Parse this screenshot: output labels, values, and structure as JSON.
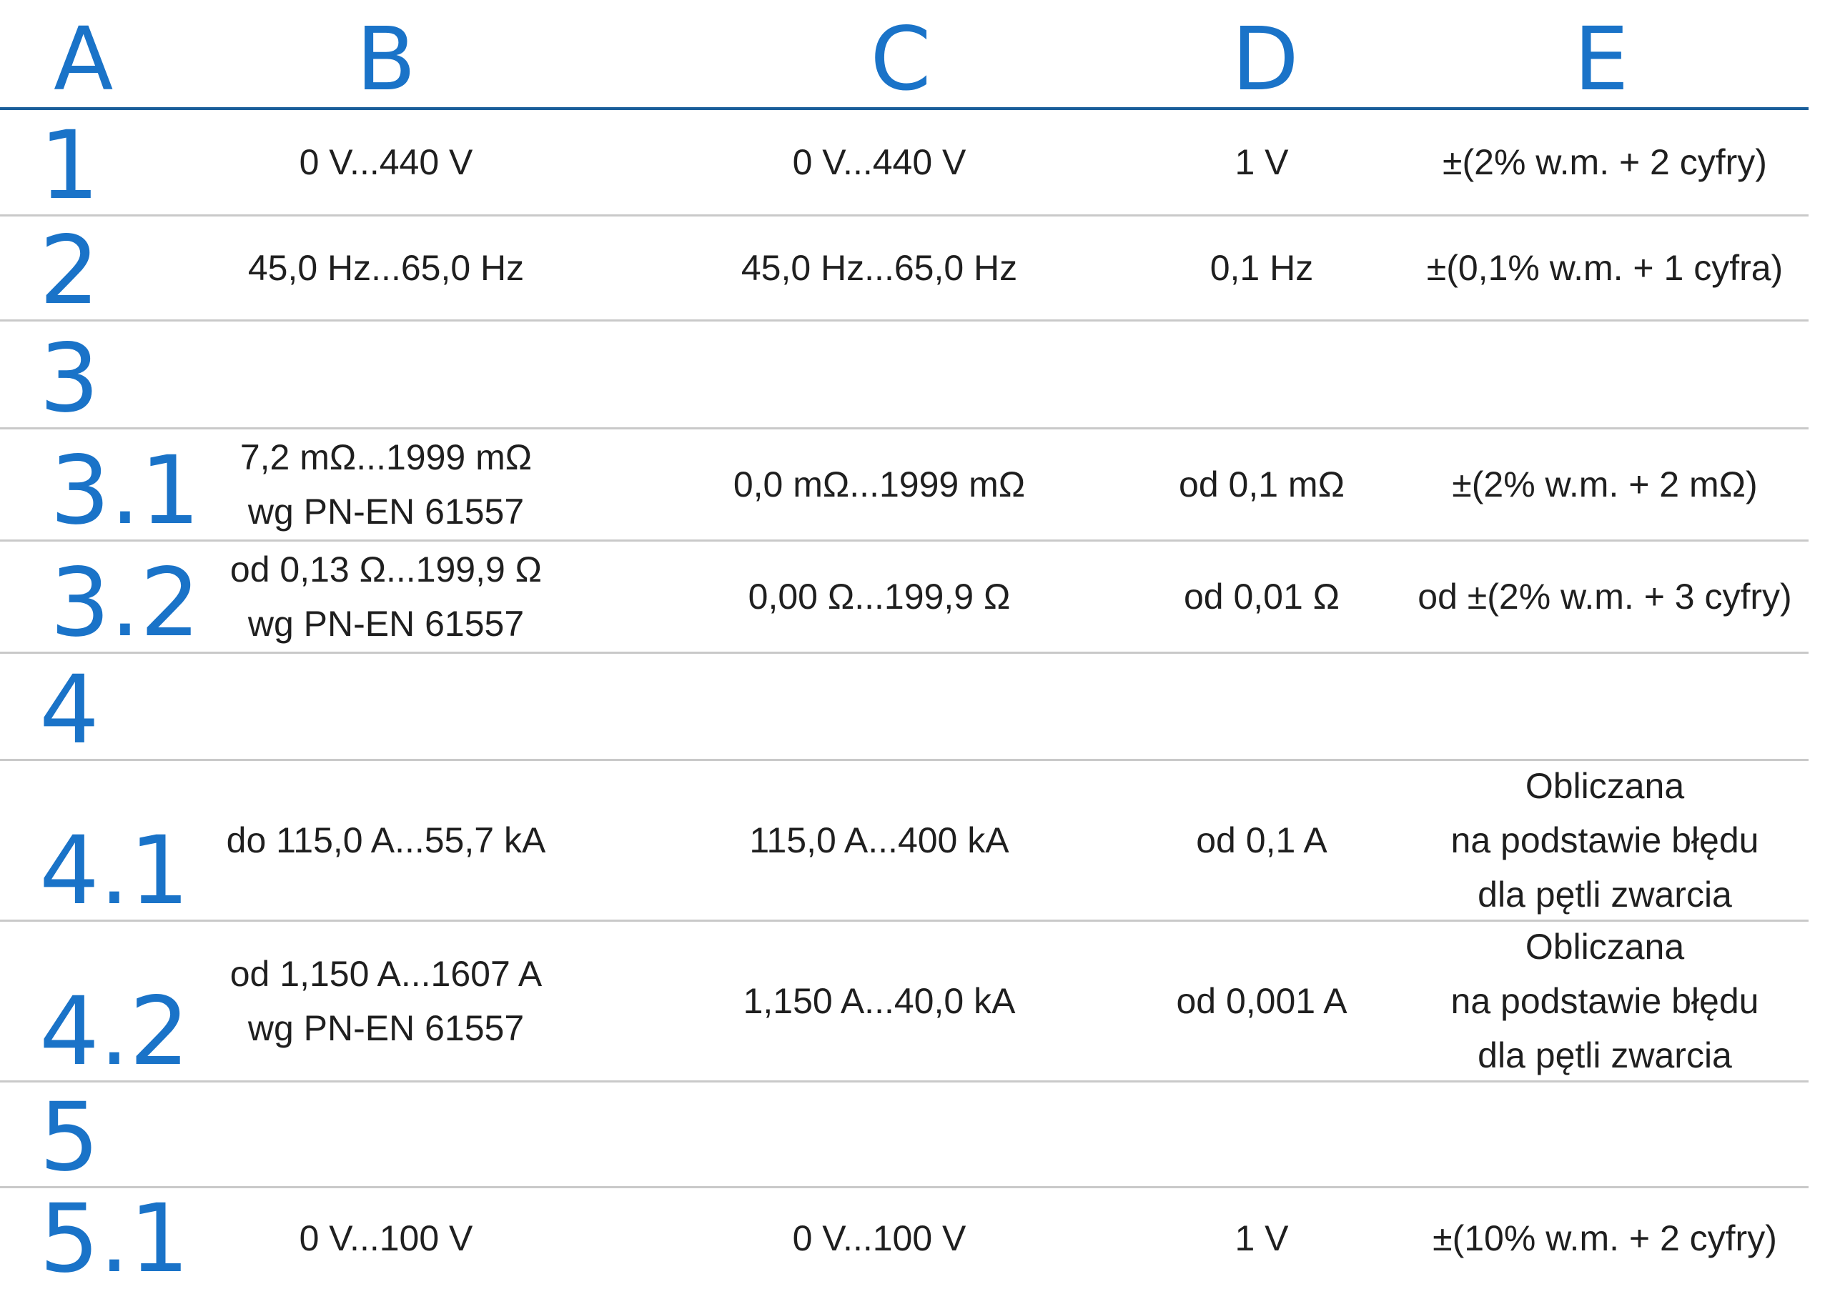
{
  "columns": [
    "A",
    "B",
    "C",
    "D",
    "E"
  ],
  "rows": [
    {
      "index": "1",
      "b": [
        "0 V...440 V"
      ],
      "c": "0 V...440 V",
      "d": "1 V",
      "e": [
        "±(2% w.m. + 2 cyfry)"
      ]
    },
    {
      "index": "2",
      "b": [
        "45,0 Hz...65,0 Hz"
      ],
      "c": "45,0 Hz...65,0 Hz",
      "d": "0,1 Hz",
      "e": [
        "±(0,1% w.m. + 1 cyfra)"
      ]
    },
    {
      "index": "3",
      "b": [],
      "c": "",
      "d": "",
      "e": []
    },
    {
      "index": "3.1",
      "b": [
        "7,2 mΩ...1999 mΩ",
        "wg PN-EN 61557"
      ],
      "c": "0,0 mΩ...1999 mΩ",
      "d": "od 0,1 mΩ",
      "e": [
        "±(2% w.m. + 2 mΩ)"
      ]
    },
    {
      "index": "3.2",
      "b": [
        "od 0,13 Ω...199,9 Ω",
        "wg PN-EN 61557"
      ],
      "c": "0,00 Ω...199,9 Ω",
      "d": "od 0,01 Ω",
      "e": [
        "od ±(2% w.m. + 3 cyfry)"
      ]
    },
    {
      "index": "4",
      "b": [],
      "c": "",
      "d": "",
      "e": []
    },
    {
      "index": "4.1",
      "b": [
        "do 115,0 A...55,7 kA"
      ],
      "c": "115,0 A...400 kA",
      "d": "od 0,1 A",
      "e": [
        "Obliczana",
        "na podstawie błędu",
        "dla pętli zwarcia"
      ]
    },
    {
      "index": "4.2",
      "b": [
        "od 1,150 A...1607 A",
        "wg PN-EN 61557"
      ],
      "c": "1,150 A...40,0 kA",
      "d": "od 0,001 A",
      "e": [
        "Obliczana",
        "na podstawie błędu",
        "dla pętli zwarcia"
      ]
    },
    {
      "index": "5",
      "b": [],
      "c": "",
      "d": "",
      "e": []
    },
    {
      "index": "5.1",
      "b": [
        "0 V...100 V"
      ],
      "c": "0 V...100 V",
      "d": "1 V",
      "e": [
        "±(10% w.m. + 2 cyfry)"
      ]
    }
  ]
}
